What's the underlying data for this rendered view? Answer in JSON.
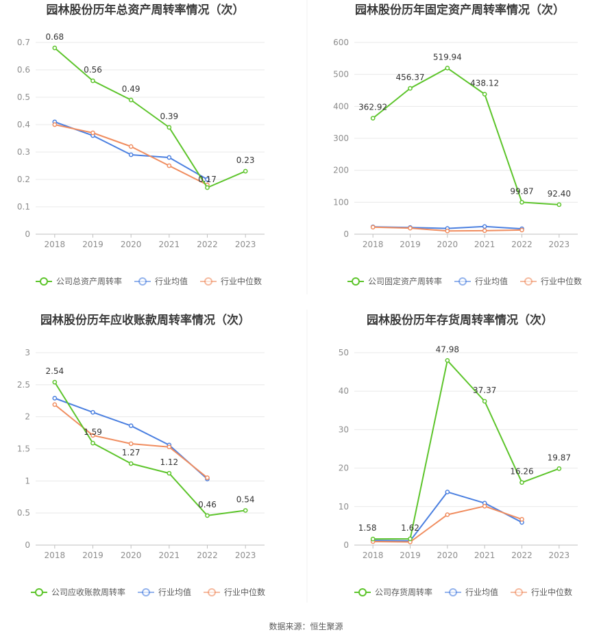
{
  "source_text": "数据来源：恒生聚源",
  "colors": {
    "company": "#5cc42a",
    "industry_avg": "#4a7fe0",
    "industry_median": "#f08c5e",
    "grid": "#e8e8e8",
    "axis": "#bfbfbf"
  },
  "chart_data": [
    {
      "type": "line",
      "title": "园林股份历年总资产周转率情况（次）",
      "categories": [
        "2018",
        "2019",
        "2020",
        "2021",
        "2022",
        "2023"
      ],
      "yticks": [
        "0",
        "0.1",
        "0.2",
        "0.3",
        "0.4",
        "0.5",
        "0.6",
        "0.7"
      ],
      "ylim": [
        0,
        0.7
      ],
      "grid": true,
      "legend_position": "bottom",
      "series": [
        {
          "name": "公司总资产周转率",
          "values": [
            0.68,
            0.56,
            0.49,
            0.39,
            0.17,
            0.23
          ],
          "labels": [
            "0.68",
            "0.56",
            "0.49",
            "0.39",
            "0.17",
            "0.23"
          ]
        },
        {
          "name": "行业均值",
          "values": [
            0.41,
            0.36,
            0.29,
            0.28,
            0.2,
            null
          ]
        },
        {
          "name": "行业中位数",
          "values": [
            0.4,
            0.37,
            0.32,
            0.25,
            0.18,
            null
          ]
        }
      ]
    },
    {
      "type": "line",
      "title": "园林股份历年固定资产周转率情况（次）",
      "categories": [
        "2018",
        "2019",
        "2020",
        "2021",
        "2022",
        "2023"
      ],
      "yticks": [
        "0",
        "100",
        "200",
        "300",
        "400",
        "500",
        "600"
      ],
      "ylim": [
        0,
        600
      ],
      "grid": true,
      "legend_position": "bottom",
      "series": [
        {
          "name": "公司固定资产周转率",
          "values": [
            362.92,
            456.37,
            519.94,
            438.12,
            99.87,
            92.4
          ],
          "labels": [
            "362.92",
            "456.37",
            "519.94",
            "438.12",
            "99.87",
            "92.40"
          ]
        },
        {
          "name": "行业均值",
          "values": [
            23,
            21,
            18,
            24,
            17,
            null
          ]
        },
        {
          "name": "行业中位数",
          "values": [
            22,
            19,
            10,
            11,
            13,
            null
          ]
        }
      ]
    },
    {
      "type": "line",
      "title": "园林股份历年应收账款周转率情况（次）",
      "categories": [
        "2018",
        "2019",
        "2020",
        "2021",
        "2022",
        "2023"
      ],
      "yticks": [
        "0",
        "0.5",
        "1",
        "1.5",
        "2",
        "2.5",
        "3"
      ],
      "ylim": [
        0,
        3
      ],
      "grid": true,
      "legend_position": "bottom",
      "series": [
        {
          "name": "公司应收账款周转率",
          "values": [
            2.54,
            1.59,
            1.27,
            1.12,
            0.46,
            0.54
          ],
          "labels": [
            "2.54",
            "1.59",
            "1.27",
            "1.12",
            "0.46",
            "0.54"
          ]
        },
        {
          "name": "行业均值",
          "values": [
            2.29,
            2.07,
            1.86,
            1.56,
            1.03,
            null
          ]
        },
        {
          "name": "行业中位数",
          "values": [
            2.19,
            1.71,
            1.58,
            1.53,
            1.05,
            null
          ]
        }
      ]
    },
    {
      "type": "line",
      "title": "园林股份历年存货周转率情况（次）",
      "categories": [
        "2018",
        "2019",
        "2020",
        "2021",
        "2022",
        "2023"
      ],
      "yticks": [
        "0",
        "10",
        "20",
        "30",
        "40",
        "50"
      ],
      "ylim": [
        0,
        50
      ],
      "grid": true,
      "legend_position": "bottom",
      "series": [
        {
          "name": "公司存货周转率",
          "values": [
            1.58,
            1.62,
            47.98,
            37.37,
            16.26,
            19.87
          ],
          "labels": [
            "1.58",
            "1.62",
            "47.98",
            "37.37",
            "16.26",
            "19.87"
          ]
        },
        {
          "name": "行业均值",
          "values": [
            1.2,
            1.1,
            13.8,
            10.9,
            5.9,
            null
          ]
        },
        {
          "name": "行业中位数",
          "values": [
            0.9,
            0.8,
            7.9,
            10.1,
            6.7,
            null
          ]
        }
      ]
    }
  ]
}
